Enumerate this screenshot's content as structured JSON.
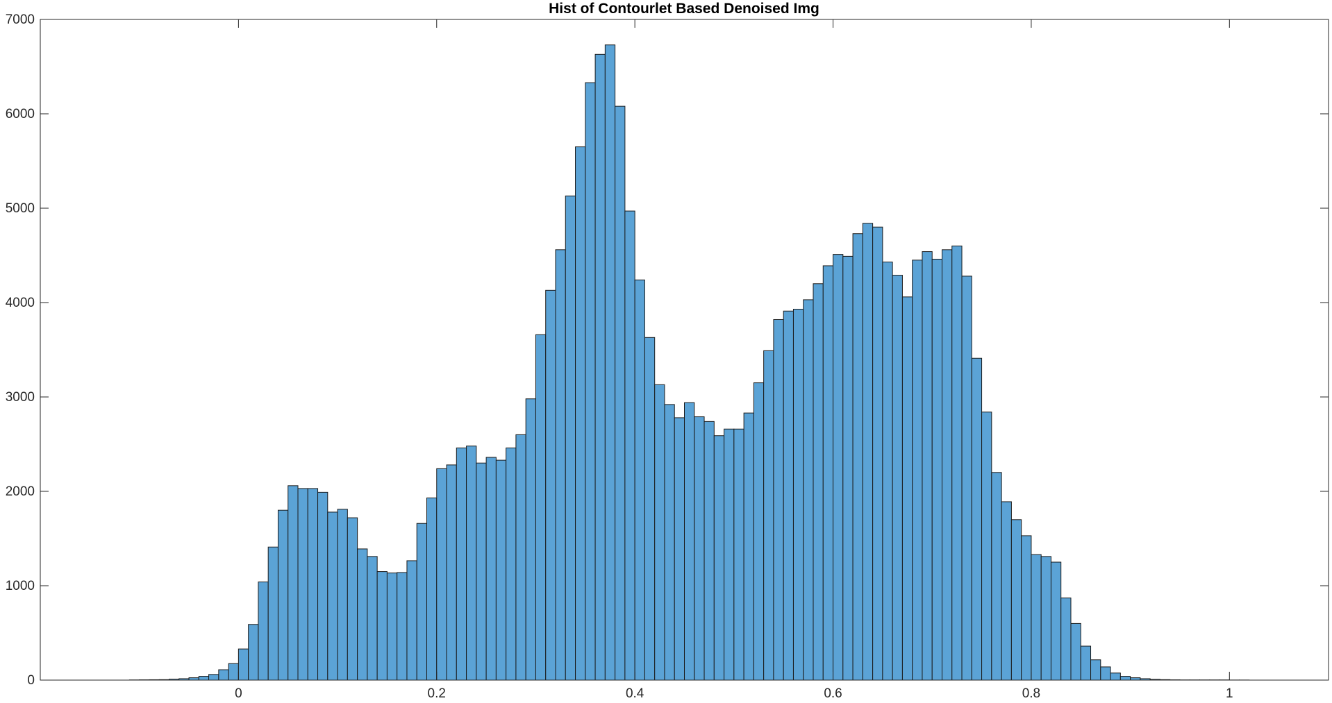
{
  "chart_data": {
    "type": "bar",
    "title": "Hist of Contourlet Based Denoised Img",
    "xlabel": "",
    "ylabel": "",
    "xlim": [
      -0.2,
      1.1
    ],
    "ylim": [
      0,
      7000
    ],
    "bin_width": 0.01,
    "bin_start": -0.11,
    "xticks": [
      0,
      0.2,
      0.4,
      0.6,
      0.8,
      1
    ],
    "xtick_labels": [
      "0",
      "0.2",
      "0.4",
      "0.6",
      "0.8",
      "1"
    ],
    "yticks": [
      0,
      1000,
      2000,
      3000,
      4000,
      5000,
      6000,
      7000
    ],
    "ytick_labels": [
      "0",
      "1000",
      "2000",
      "3000",
      "4000",
      "5000",
      "6000",
      "7000"
    ],
    "grid": false,
    "legend": "none",
    "bar_color": "#5BA3D6",
    "edge_color": "#1a1a1a",
    "values": [
      2,
      3,
      4,
      5,
      10,
      15,
      25,
      40,
      60,
      110,
      175,
      330,
      590,
      1040,
      1410,
      1800,
      2060,
      2030,
      2030,
      1990,
      1780,
      1810,
      1720,
      1390,
      1310,
      1150,
      1135,
      1140,
      1265,
      1660,
      1930,
      2240,
      2280,
      2460,
      2480,
      2300,
      2360,
      2330,
      2460,
      2600,
      2980,
      3660,
      4130,
      4560,
      5130,
      5650,
      6330,
      6630,
      6730,
      6080,
      4970,
      4240,
      3630,
      3130,
      2920,
      2780,
      2940,
      2790,
      2740,
      2590,
      2660,
      2660,
      2830,
      3150,
      3490,
      3820,
      3910,
      3930,
      4030,
      4200,
      4390,
      4510,
      4490,
      4730,
      4840,
      4800,
      4430,
      4290,
      4060,
      4450,
      4540,
      4460,
      4560,
      4600,
      4280,
      3410,
      2840,
      2200,
      1890,
      1700,
      1530,
      1330,
      1310,
      1250,
      870,
      600,
      360,
      215,
      140,
      75,
      40,
      25,
      15,
      8,
      5,
      3,
      2,
      2,
      2,
      2,
      2,
      1,
      1
    ]
  }
}
